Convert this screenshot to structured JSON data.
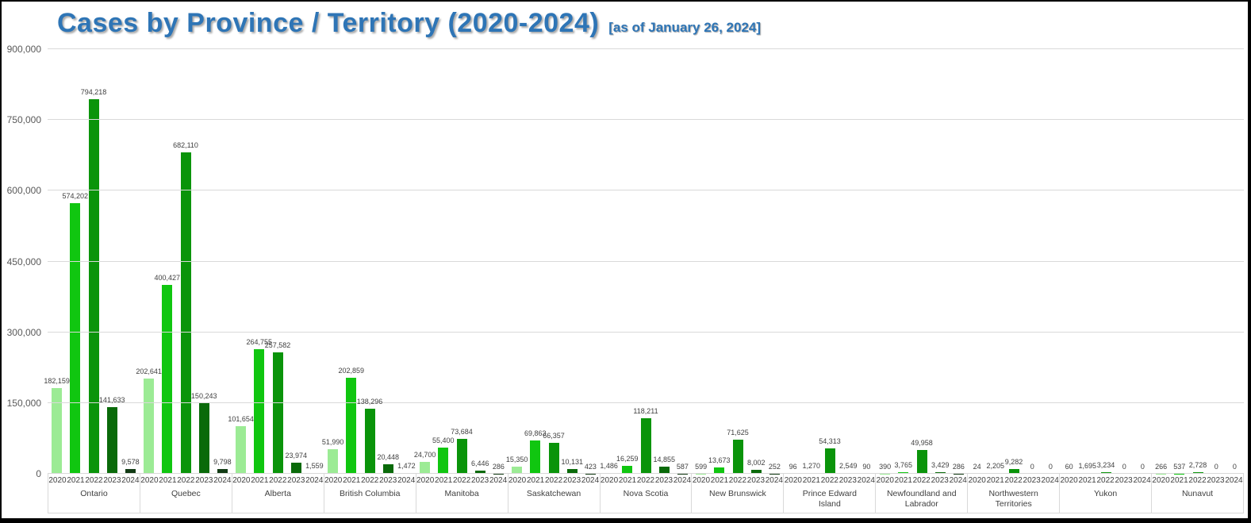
{
  "chart_data": {
    "type": "bar",
    "title": "Cases by Province / Territory (2020-2024)",
    "subtitle": "[as of January 26, 2024]",
    "xlabel": "",
    "ylabel": "",
    "ylim": [
      0,
      900000
    ],
    "ytick_interval": 150000,
    "yticks": [
      "0",
      "150,000",
      "300,000",
      "450,000",
      "600,000",
      "750,000",
      "900,000"
    ],
    "grid": true,
    "legend_position": "none",
    "years": [
      "2020",
      "2021",
      "2022",
      "2023",
      "2024"
    ],
    "year_colors": [
      "#9CEB95",
      "#10C610",
      "#0A940A",
      "#0A6A0A",
      "#123B14"
    ],
    "categories": [
      "Ontario",
      "Quebec",
      "Alberta",
      "British Columbia",
      "Manitoba",
      "Saskatchewan",
      "Nova Scotia",
      "New Brunswick",
      "Prince Edward Island",
      "Newfoundland and Labrador",
      "Northwestern Territories",
      "Yukon",
      "Nunavut"
    ],
    "series": [
      {
        "name": "2020",
        "values": [
          182159,
          202641,
          101654,
          51990,
          24700,
          15350,
          1486,
          599,
          96,
          390,
          24,
          60,
          266
        ]
      },
      {
        "name": "2021",
        "values": [
          574202,
          400427,
          264755,
          202859,
          55400,
          69863,
          16259,
          13673,
          1270,
          3765,
          2205,
          1695,
          537
        ]
      },
      {
        "name": "2022",
        "values": [
          794218,
          682110,
          257582,
          138296,
          73684,
          66357,
          118211,
          71625,
          54313,
          49958,
          9282,
          3234,
          2728
        ]
      },
      {
        "name": "2023",
        "values": [
          141633,
          150243,
          23974,
          20448,
          6446,
          10131,
          14855,
          8002,
          2549,
          3429,
          0,
          0,
          0
        ]
      },
      {
        "name": "2024",
        "values": [
          9578,
          9798,
          1559,
          1472,
          286,
          423,
          587,
          252,
          90,
          286,
          0,
          0,
          0
        ]
      }
    ],
    "colors": {
      "title": "#2E75B6",
      "gridline": "#D9D9D9",
      "axis_text": "#404040",
      "ytick_text": "#595959",
      "value_label": "#404040",
      "frame_border": "#000000"
    }
  }
}
